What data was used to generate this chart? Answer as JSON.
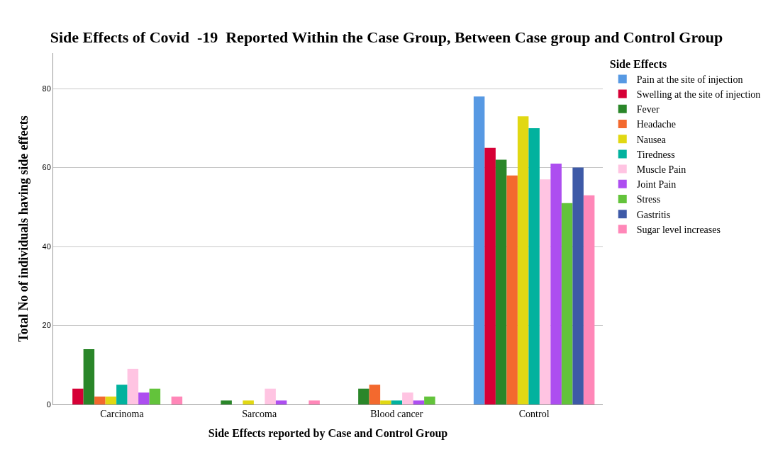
{
  "chart_data": {
    "type": "bar",
    "title": "Side Effects of Covid  -19  Reported Within the Case Group, Between Case group and Control Group",
    "xlabel": "Side Effects reported by Case and Control Group",
    "ylabel": "Total No of individuals having side effects",
    "legend_title": "Side Effects",
    "categories": [
      "Carcinoma",
      "Sarcoma",
      "Blood cancer",
      "Control"
    ],
    "series": [
      {
        "name": "Pain at the site of injection",
        "color": "#5799e3",
        "values": [
          null,
          null,
          null,
          78
        ]
      },
      {
        "name": "Swelling at the site of injection",
        "color": "#d60036",
        "values": [
          4,
          null,
          null,
          65
        ]
      },
      {
        "name": "Fever",
        "color": "#2a8629",
        "values": [
          14,
          1,
          4,
          62
        ]
      },
      {
        "name": "Headache",
        "color": "#f3692e",
        "values": [
          2,
          null,
          5,
          58
        ]
      },
      {
        "name": "Nausea",
        "color": "#e1d813",
        "values": [
          2,
          1,
          1,
          73
        ]
      },
      {
        "name": "Tiredness",
        "color": "#02b29e",
        "values": [
          5,
          null,
          1,
          70
        ]
      },
      {
        "name": "Muscle Pain",
        "color": "#ffc4e2",
        "values": [
          9,
          4,
          3,
          57
        ]
      },
      {
        "name": "Joint Pain",
        "color": "#ad4ef0",
        "values": [
          3,
          1,
          1,
          61
        ]
      },
      {
        "name": "Stress",
        "color": "#63c33b",
        "values": [
          4,
          null,
          2,
          51
        ]
      },
      {
        "name": "Gastritis",
        "color": "#3e5aa7",
        "values": [
          null,
          null,
          null,
          60
        ]
      },
      {
        "name": "Sugar level increases",
        "color": "#ff87b8",
        "values": [
          2,
          1,
          null,
          53
        ]
      }
    ],
    "ylim": [
      0,
      89
    ],
    "yticks": [
      0,
      20,
      40,
      60,
      80
    ],
    "grid": "y",
    "legend": "right"
  }
}
